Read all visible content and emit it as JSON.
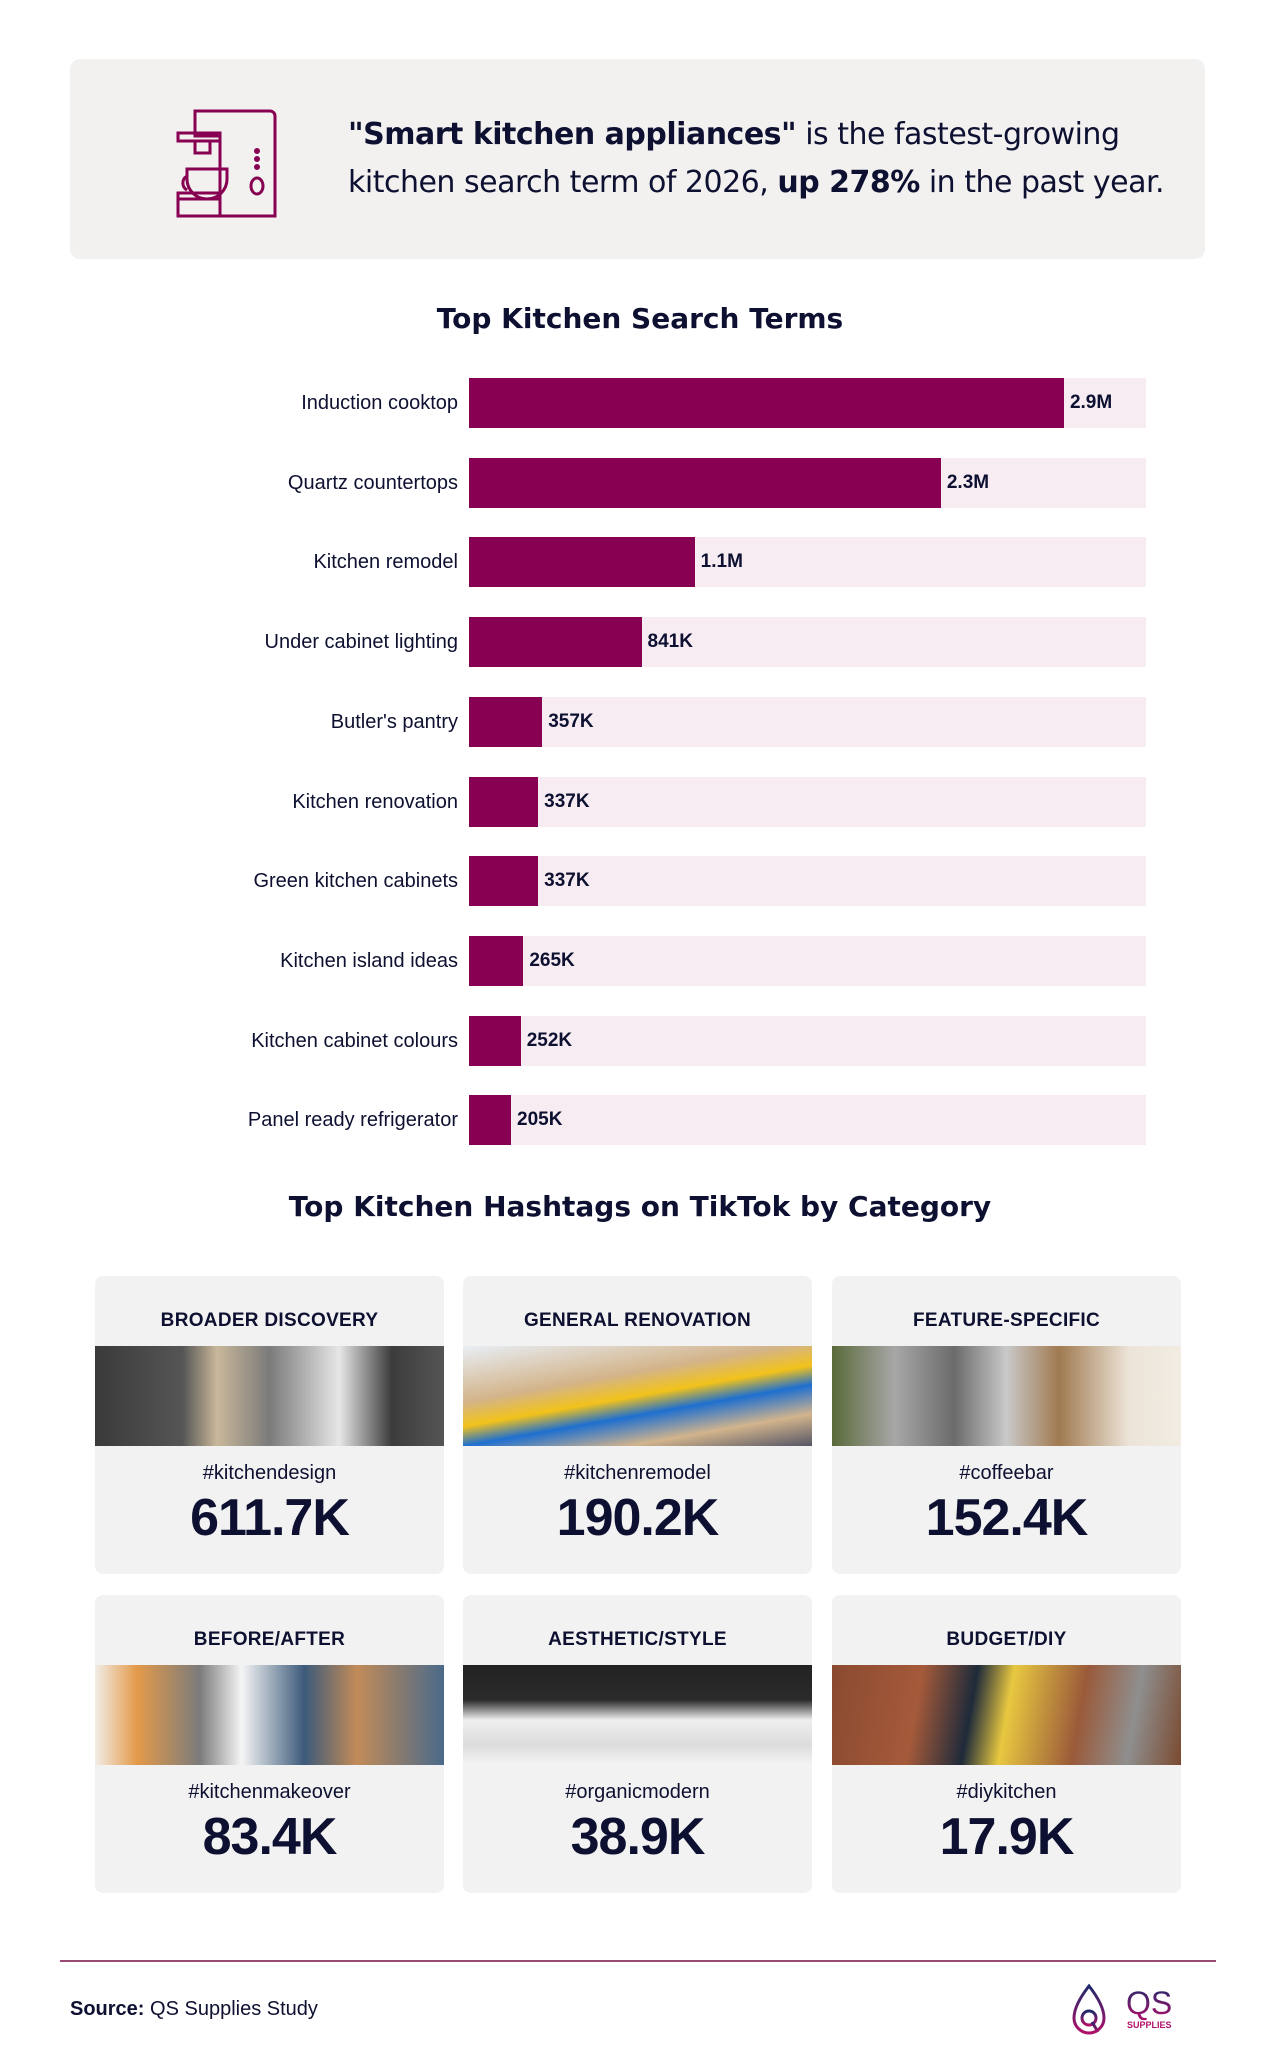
{
  "hero": {
    "icon": "coffee-machine-icon",
    "quote": "\"Smart kitchen appliances\"",
    "text1": " is the fastest-growing kitchen search term of 2026, ",
    "bold2": "up 278%",
    "text2": " in the past year."
  },
  "colors": {
    "bar": "#870052",
    "track": "#f6ecf1",
    "text": "#0d1030",
    "card": "#f2f2f2"
  },
  "chart_data": {
    "type": "bar",
    "orientation": "horizontal",
    "title": "Top Kitchen Search Terms",
    "xlim": [
      0,
      3300000
    ],
    "grid": false,
    "categories": [
      "Induction cooktop",
      "Quartz countertops",
      "Kitchen remodel",
      "Under cabinet lighting",
      "Butler's pantry",
      "Kitchen renovation",
      "Green kitchen cabinets",
      "Kitchen island ideas",
      "Kitchen cabinet colours",
      "Panel ready refrigerator"
    ],
    "values": [
      2900000,
      2300000,
      1100000,
      841000,
      357000,
      337000,
      337000,
      265000,
      252000,
      205000
    ],
    "labels": [
      "2.9M",
      "2.3M",
      "1.1M",
      "841K",
      "357K",
      "337K",
      "337K",
      "265K",
      "252K",
      "205K"
    ]
  },
  "hashtags": {
    "title": "Top Kitchen Hashtags on TikTok by Category",
    "cards": [
      {
        "category": "BROADER DISCOVERY",
        "tag": "#kitchendesign",
        "value": "611.7K",
        "image": "modern-kitchen-photo"
      },
      {
        "category": "GENERAL RENOVATION",
        "tag": "#kitchenremodel",
        "value": "190.2K",
        "image": "renovation-level-photo"
      },
      {
        "category": "FEATURE-SPECIFIC",
        "tag": "#coffeebar",
        "value": "152.4K",
        "image": "coffee-bar-photo"
      },
      {
        "category": "BEFORE/AFTER",
        "tag": "#kitchenmakeover",
        "value": "83.4K",
        "image": "kitchen-makeover-photo"
      },
      {
        "category": "AESTHETIC/STYLE",
        "tag": "#organicmodern",
        "value": "38.9K",
        "image": "organic-modern-photo"
      },
      {
        "category": "BUDGET/DIY",
        "tag": "#diykitchen",
        "value": "17.9K",
        "image": "diy-toolbox-photo"
      }
    ]
  },
  "footer": {
    "source_label": "Source:",
    "source_text": " QS Supplies Study",
    "logo": "QS SUPPLIES"
  }
}
